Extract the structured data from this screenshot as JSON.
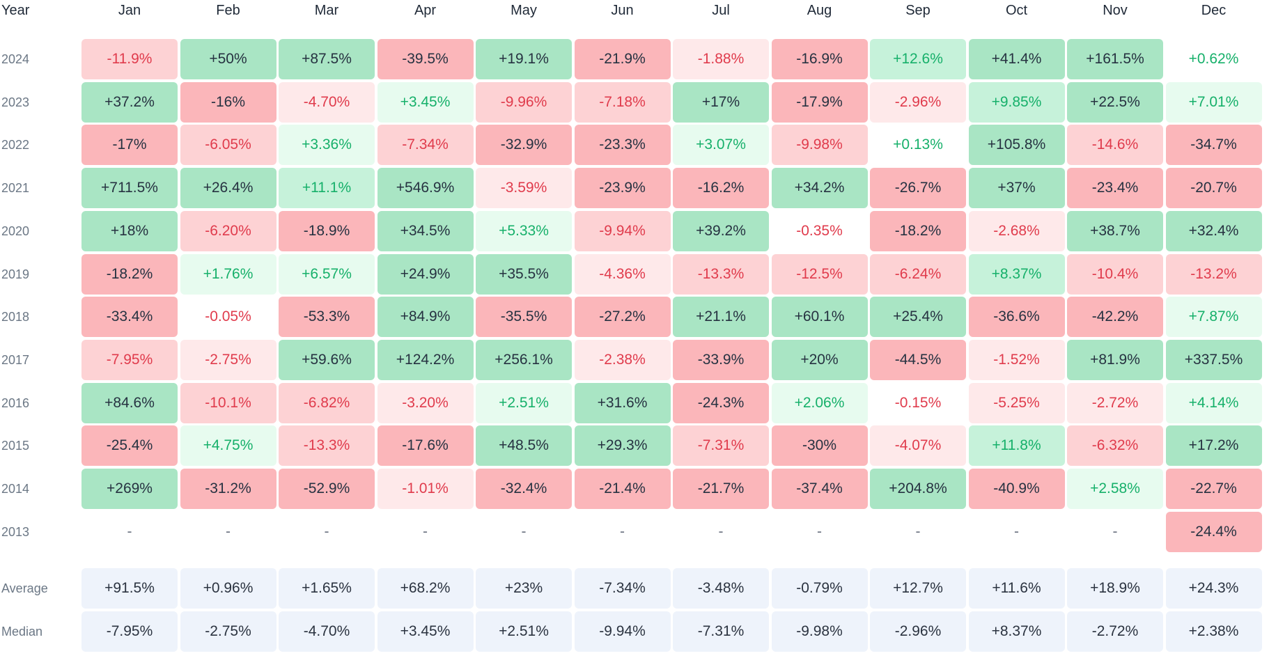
{
  "chart_data": {
    "type": "heatmap",
    "column_header_label": "Year",
    "months": [
      "Jan",
      "Feb",
      "Mar",
      "Apr",
      "May",
      "Jun",
      "Jul",
      "Aug",
      "Sep",
      "Oct",
      "Nov",
      "Dec"
    ],
    "rows": [
      {
        "year": "2024",
        "values": [
          "-11.9%",
          "+50%",
          "+87.5%",
          "-39.5%",
          "+19.1%",
          "-21.9%",
          "-1.88%",
          "-16.9%",
          "+12.6%",
          "+41.4%",
          "+161.5%",
          "+0.62%"
        ]
      },
      {
        "year": "2023",
        "values": [
          "+37.2%",
          "-16%",
          "-4.70%",
          "+3.45%",
          "-9.96%",
          "-7.18%",
          "+17%",
          "-17.9%",
          "-2.96%",
          "+9.85%",
          "+22.5%",
          "+7.01%"
        ]
      },
      {
        "year": "2022",
        "values": [
          "-17%",
          "-6.05%",
          "+3.36%",
          "-7.34%",
          "-32.9%",
          "-23.3%",
          "+3.07%",
          "-9.98%",
          "+0.13%",
          "+105.8%",
          "-14.6%",
          "-34.7%"
        ]
      },
      {
        "year": "2021",
        "values": [
          "+711.5%",
          "+26.4%",
          "+11.1%",
          "+546.9%",
          "-3.59%",
          "-23.9%",
          "-16.2%",
          "+34.2%",
          "-26.7%",
          "+37%",
          "-23.4%",
          "-20.7%"
        ]
      },
      {
        "year": "2020",
        "values": [
          "+18%",
          "-6.20%",
          "-18.9%",
          "+34.5%",
          "+5.33%",
          "-9.94%",
          "+39.2%",
          "-0.35%",
          "-18.2%",
          "-2.68%",
          "+38.7%",
          "+32.4%"
        ]
      },
      {
        "year": "2019",
        "values": [
          "-18.2%",
          "+1.76%",
          "+6.57%",
          "+24.9%",
          "+35.5%",
          "-4.36%",
          "-13.3%",
          "-12.5%",
          "-6.24%",
          "+8.37%",
          "-10.4%",
          "-13.2%"
        ]
      },
      {
        "year": "2018",
        "values": [
          "-33.4%",
          "-0.05%",
          "-53.3%",
          "+84.9%",
          "-35.5%",
          "-27.2%",
          "+21.1%",
          "+60.1%",
          "+25.4%",
          "-36.6%",
          "-42.2%",
          "+7.87%"
        ]
      },
      {
        "year": "2017",
        "values": [
          "-7.95%",
          "-2.75%",
          "+59.6%",
          "+124.2%",
          "+256.1%",
          "-2.38%",
          "-33.9%",
          "+20%",
          "-44.5%",
          "-1.52%",
          "+81.9%",
          "+337.5%"
        ]
      },
      {
        "year": "2016",
        "values": [
          "+84.6%",
          "-10.1%",
          "-6.82%",
          "-3.20%",
          "+2.51%",
          "+31.6%",
          "-24.3%",
          "+2.06%",
          "-0.15%",
          "-5.25%",
          "-2.72%",
          "+4.14%"
        ]
      },
      {
        "year": "2015",
        "values": [
          "-25.4%",
          "+4.75%",
          "-13.3%",
          "-17.6%",
          "+48.5%",
          "+29.3%",
          "-7.31%",
          "-30%",
          "-4.07%",
          "+11.8%",
          "-6.32%",
          "+17.2%"
        ]
      },
      {
        "year": "2014",
        "values": [
          "+269%",
          "-31.2%",
          "-52.9%",
          "-1.01%",
          "-32.4%",
          "-21.4%",
          "-21.7%",
          "-37.4%",
          "+204.8%",
          "-40.9%",
          "+2.58%",
          "-22.7%"
        ]
      },
      {
        "year": "2013",
        "values": [
          "-",
          "-",
          "-",
          "-",
          "-",
          "-",
          "-",
          "-",
          "-",
          "-",
          "-",
          "-24.4%"
        ]
      }
    ],
    "summary_rows": [
      {
        "label": "Average",
        "values": [
          "+91.5%",
          "+0.96%",
          "+1.65%",
          "+68.2%",
          "+23%",
          "-7.34%",
          "-3.48%",
          "-0.79%",
          "+12.7%",
          "+11.6%",
          "+18.9%",
          "+24.3%"
        ]
      },
      {
        "label": "Median",
        "values": [
          "-7.95%",
          "-2.75%",
          "-4.70%",
          "+3.45%",
          "+2.51%",
          "-9.94%",
          "-7.31%",
          "-9.98%",
          "-2.96%",
          "+8.37%",
          "-2.72%",
          "+2.38%"
        ]
      }
    ]
  },
  "colors": {
    "strong_positive_bg": "#a9e5c4",
    "mid_positive_bg": "#c6f2da",
    "light_positive_bg": "#e7fbef",
    "strong_negative_bg": "#fbb6ba",
    "mid_negative_bg": "#fdd2d4",
    "light_negative_bg": "#fee9ea",
    "neutral_bg": "#ffffff",
    "strong_text": "#263241",
    "positive_text": "#16b06a",
    "negative_text": "#e03b4c",
    "summary_bg": "#eef3fb",
    "summary_text": "#2b3340",
    "header_text": "#1f2937",
    "label_text": "#6b7785"
  }
}
